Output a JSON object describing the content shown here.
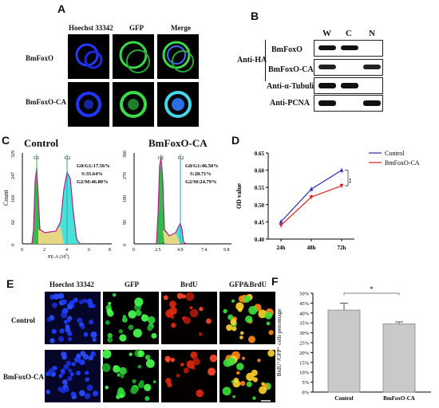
{
  "panels": {
    "A": "A",
    "B": "B",
    "C": "C",
    "D": "D",
    "E": "E",
    "F": "F"
  },
  "panelA": {
    "columns": [
      "Hoechst 33342",
      "GFP",
      "Merge"
    ],
    "rows": [
      "BmFoxO",
      "BmFoxO-CA"
    ]
  },
  "panelB": {
    "lanes": [
      "W",
      "C",
      "N"
    ],
    "antibody_group": "Anti-HA",
    "rows": [
      "BmFoxO",
      "BmFoxO-CA",
      "Anti-α-Tubulin",
      "Anti-PCNA"
    ]
  },
  "panelC": {
    "plots": [
      {
        "title": "Control",
        "peaks": [
          "G1",
          "G2"
        ],
        "stats": [
          "G0/G1:17.56%",
          "S:35.64%",
          "G2/M:46.80%"
        ],
        "yticks": [
          "0",
          "82",
          "164",
          "247",
          "329"
        ],
        "xticks": [
          "0",
          "2",
          "4",
          "6",
          "8"
        ],
        "xunit": "2."
      },
      {
        "title": "BmFoxO-CA",
        "peaks": [
          "G1",
          "G2"
        ],
        "stats": [
          "G0/G1:46.50%",
          "S:28.71%",
          "G2/M:24.79%"
        ],
        "yticks": [
          "0",
          "90",
          "180",
          "270",
          "360"
        ],
        "xticks": [
          "0",
          "2.5",
          "4.9",
          "7.4",
          "9.8"
        ]
      }
    ],
    "ylabel": "Count",
    "xlabel": "PE-A  (10",
    "xlabel_exp": "6",
    "xlabel_close": ")"
  },
  "panelE": {
    "columns": [
      "Hoechst 33342",
      "GFP",
      "BrdU",
      "GFP&BrdU"
    ],
    "rows": [
      "Control",
      "BmFoxO-CA"
    ]
  },
  "chart_data": [
    {
      "type": "line",
      "panel": "D",
      "x": [
        "24h",
        "48h",
        "72h"
      ],
      "series": [
        {
          "name": "Control",
          "values": [
            0.45,
            0.545,
            0.6
          ],
          "color": "#2b2bb5"
        },
        {
          "name": "BmFoxO-CA",
          "values": [
            0.44,
            0.522,
            0.555
          ],
          "color": "#e02020"
        }
      ],
      "ylabel": "OD value",
      "ylim": [
        0.4,
        0.65
      ],
      "yticks": [
        "0.40",
        "0.45",
        "0.50",
        "0.55",
        "0.60",
        "0.65"
      ],
      "annotation": "**",
      "legend": "top-right"
    },
    {
      "type": "bar",
      "panel": "F",
      "categories": [
        "Control",
        "BmFoxO-CA"
      ],
      "values": [
        41.5,
        34.5
      ],
      "errors": [
        3.5,
        1.0
      ],
      "ylabel": "BrdU⁺/GFP⁺ cells percentage",
      "ylim": [
        0,
        50
      ],
      "yticks": [
        "0%",
        "5%",
        "10%",
        "15%",
        "20%",
        "25%",
        "30%",
        "35%",
        "40%",
        "45%",
        "50%"
      ],
      "annotation": "*"
    }
  ]
}
